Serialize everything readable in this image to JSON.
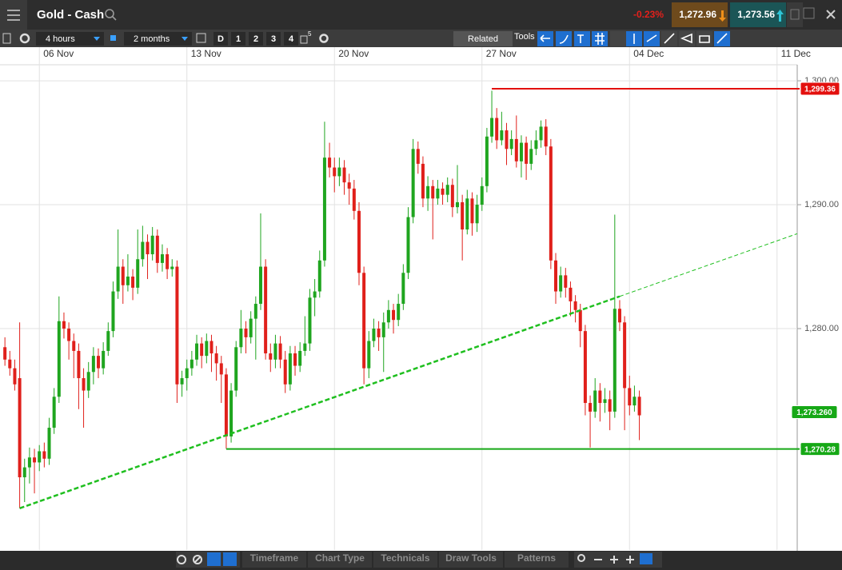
{
  "header": {
    "title": "Gold - Cash",
    "change": "-0.23%",
    "sell": "1,272.96",
    "buy": "1,273.56"
  },
  "toolbar": {
    "interval": "4 hours",
    "range": "2 months",
    "buttons": [
      "D",
      "1",
      "2",
      "3",
      "4"
    ],
    "layout_badge": "5",
    "related": "Related",
    "tools": "Tools"
  },
  "chart_data": {
    "type": "candlestick",
    "up_color": "#1fa51f",
    "down_color": "#e0201b",
    "ohlc": [
      [
        1278.5,
        1279.3,
        1277.0,
        1277.5
      ],
      [
        1277.5,
        1278.2,
        1276.2,
        1276.8
      ],
      [
        1276.8,
        1277.5,
        1275.0,
        1275.5
      ],
      [
        1276.0,
        1280.5,
        1265.5,
        1268.0
      ],
      [
        1268.0,
        1269.5,
        1266.0,
        1268.8
      ],
      [
        1268.8,
        1270.4,
        1267.5,
        1269.6
      ],
      [
        1269.6,
        1270.3,
        1266.7,
        1269.2
      ],
      [
        1269.2,
        1270.6,
        1268.5,
        1270.1
      ],
      [
        1270.1,
        1270.8,
        1268.8,
        1269.5
      ],
      [
        1269.5,
        1272.8,
        1269.0,
        1272.0
      ],
      [
        1272.0,
        1275.2,
        1271.5,
        1274.5
      ],
      [
        1274.5,
        1282.6,
        1274.0,
        1280.6
      ],
      [
        1280.6,
        1281.3,
        1279.2,
        1280.0
      ],
      [
        1280.0,
        1280.5,
        1277.5,
        1279.0
      ],
      [
        1279.0,
        1279.6,
        1276.0,
        1278.2
      ],
      [
        1278.2,
        1278.8,
        1273.5,
        1276.0
      ],
      [
        1276.0,
        1276.8,
        1272.0,
        1275.0
      ],
      [
        1275.0,
        1277.3,
        1274.4,
        1276.5
      ],
      [
        1276.5,
        1278.5,
        1275.5,
        1277.8
      ],
      [
        1277.8,
        1278.4,
        1276.0,
        1276.8
      ],
      [
        1276.8,
        1278.9,
        1276.3,
        1278.2
      ],
      [
        1278.2,
        1280.5,
        1277.8,
        1279.8
      ],
      [
        1279.8,
        1283.8,
        1279.3,
        1283.0
      ],
      [
        1283.0,
        1288.0,
        1282.4,
        1285.0
      ],
      [
        1285.0,
        1285.6,
        1282.0,
        1283.5
      ],
      [
        1283.5,
        1286.0,
        1283.0,
        1284.2
      ],
      [
        1284.2,
        1284.8,
        1282.3,
        1283.3
      ],
      [
        1283.3,
        1288.0,
        1282.8,
        1285.6
      ],
      [
        1285.6,
        1288.3,
        1285.0,
        1287.0
      ],
      [
        1287.0,
        1287.6,
        1284.0,
        1286.0
      ],
      [
        1286.0,
        1288.2,
        1285.5,
        1287.5
      ],
      [
        1287.5,
        1288.0,
        1284.5,
        1285.3
      ],
      [
        1285.3,
        1286.8,
        1284.6,
        1286.0
      ],
      [
        1286.0,
        1286.5,
        1284.0,
        1284.8
      ],
      [
        1284.8,
        1285.6,
        1284.2,
        1285.0
      ],
      [
        1285.0,
        1285.5,
        1274.0,
        1275.5
      ],
      [
        1275.5,
        1276.6,
        1274.5,
        1276.0
      ],
      [
        1276.0,
        1277.5,
        1275.0,
        1276.8
      ],
      [
        1276.8,
        1278.2,
        1276.2,
        1277.5
      ],
      [
        1277.5,
        1279.5,
        1277.0,
        1278.8
      ],
      [
        1278.8,
        1279.3,
        1276.8,
        1277.8
      ],
      [
        1277.8,
        1279.6,
        1277.2,
        1279.0
      ],
      [
        1279.0,
        1279.5,
        1276.5,
        1278.0
      ],
      [
        1278.0,
        1278.6,
        1275.8,
        1277.2
      ],
      [
        1277.2,
        1277.8,
        1274.0,
        1276.3
      ],
      [
        1276.3,
        1276.8,
        1270.3,
        1271.3
      ],
      [
        1271.3,
        1275.6,
        1270.8,
        1275.0
      ],
      [
        1275.0,
        1279.0,
        1274.5,
        1278.5
      ],
      [
        1278.5,
        1281.5,
        1278.0,
        1280.0
      ],
      [
        1280.0,
        1280.6,
        1278.0,
        1279.3
      ],
      [
        1279.3,
        1281.4,
        1278.8,
        1280.8
      ],
      [
        1280.8,
        1282.6,
        1277.5,
        1282.0
      ],
      [
        1282.0,
        1289.3,
        1281.5,
        1285.0
      ],
      [
        1285.0,
        1285.6,
        1277.5,
        1278.0
      ],
      [
        1278.0,
        1278.8,
        1276.5,
        1277.5
      ],
      [
        1277.5,
        1279.5,
        1276.8,
        1278.8
      ],
      [
        1278.8,
        1279.4,
        1276.8,
        1277.5
      ],
      [
        1277.5,
        1278.2,
        1274.8,
        1275.5
      ],
      [
        1275.5,
        1278.6,
        1275.0,
        1278.0
      ],
      [
        1278.0,
        1278.6,
        1276.2,
        1277.0
      ],
      [
        1277.0,
        1278.9,
        1276.5,
        1278.2
      ],
      [
        1278.2,
        1281.0,
        1277.8,
        1278.8
      ],
      [
        1278.8,
        1283.2,
        1278.2,
        1282.5
      ],
      [
        1282.5,
        1284.0,
        1281.0,
        1283.0
      ],
      [
        1283.0,
        1286.3,
        1282.5,
        1285.5
      ],
      [
        1285.5,
        1296.7,
        1285.0,
        1293.8
      ],
      [
        1293.8,
        1295.0,
        1292.2,
        1293.0
      ],
      [
        1293.0,
        1293.8,
        1291.0,
        1292.3
      ],
      [
        1292.3,
        1293.8,
        1291.5,
        1293.0
      ],
      [
        1293.0,
        1293.6,
        1290.8,
        1291.8
      ],
      [
        1291.8,
        1292.5,
        1290.0,
        1291.3
      ],
      [
        1291.3,
        1292.0,
        1288.8,
        1289.5
      ],
      [
        1289.5,
        1290.2,
        1283.5,
        1284.5
      ],
      [
        1284.5,
        1285.0,
        1275.5,
        1276.8
      ],
      [
        1276.8,
        1279.8,
        1276.0,
        1279.0
      ],
      [
        1279.0,
        1280.8,
        1278.5,
        1280.0
      ],
      [
        1280.0,
        1280.6,
        1278.2,
        1279.3
      ],
      [
        1279.3,
        1281.3,
        1276.5,
        1280.5
      ],
      [
        1280.5,
        1282.3,
        1280.0,
        1281.5
      ],
      [
        1281.5,
        1282.0,
        1279.6,
        1280.7
      ],
      [
        1280.7,
        1282.8,
        1280.2,
        1282.0
      ],
      [
        1282.0,
        1285.2,
        1281.5,
        1284.5
      ],
      [
        1284.5,
        1289.8,
        1284.0,
        1289.0
      ],
      [
        1289.0,
        1295.3,
        1288.5,
        1294.5
      ],
      [
        1294.5,
        1295.1,
        1292.5,
        1293.3
      ],
      [
        1293.3,
        1293.9,
        1289.8,
        1290.5
      ],
      [
        1290.5,
        1292.3,
        1289.5,
        1291.5
      ],
      [
        1291.5,
        1292.0,
        1287.2,
        1290.5
      ],
      [
        1290.5,
        1292.0,
        1290.0,
        1291.3
      ],
      [
        1291.3,
        1291.8,
        1290.0,
        1290.8
      ],
      [
        1290.8,
        1292.2,
        1290.2,
        1291.6
      ],
      [
        1291.6,
        1292.1,
        1289.0,
        1289.8
      ],
      [
        1289.8,
        1293.2,
        1289.3,
        1290.2
      ],
      [
        1290.2,
        1290.8,
        1285.5,
        1288.0
      ],
      [
        1288.0,
        1291.2,
        1287.6,
        1290.5
      ],
      [
        1290.5,
        1291.0,
        1287.5,
        1288.5
      ],
      [
        1288.5,
        1290.8,
        1287.8,
        1290.0
      ],
      [
        1290.0,
        1292.2,
        1289.5,
        1291.5
      ],
      [
        1291.5,
        1296.2,
        1291.0,
        1295.5
      ],
      [
        1295.5,
        1299.2,
        1295.0,
        1297.0
      ],
      [
        1297.0,
        1297.8,
        1294.5,
        1295.2
      ],
      [
        1295.2,
        1297.5,
        1294.8,
        1296.0
      ],
      [
        1296.0,
        1296.6,
        1293.2,
        1294.5
      ],
      [
        1294.5,
        1296.0,
        1294.0,
        1295.3
      ],
      [
        1295.3,
        1297.2,
        1293.0,
        1293.5
      ],
      [
        1293.5,
        1295.6,
        1292.2,
        1295.0
      ],
      [
        1295.0,
        1295.5,
        1292.0,
        1293.3
      ],
      [
        1293.3,
        1295.2,
        1292.8,
        1294.5
      ],
      [
        1294.5,
        1296.0,
        1294.0,
        1295.2
      ],
      [
        1295.2,
        1296.8,
        1294.6,
        1296.3
      ],
      [
        1296.3,
        1296.9,
        1294.0,
        1294.7
      ],
      [
        1294.7,
        1295.3,
        1284.8,
        1285.5
      ],
      [
        1285.5,
        1286.1,
        1282.0,
        1283.0
      ],
      [
        1283.0,
        1285.0,
        1282.5,
        1284.3
      ],
      [
        1284.3,
        1284.9,
        1282.5,
        1283.3
      ],
      [
        1283.3,
        1283.8,
        1281.0,
        1282.2
      ],
      [
        1282.2,
        1282.7,
        1280.5,
        1281.5
      ],
      [
        1281.5,
        1282.0,
        1278.5,
        1279.8
      ],
      [
        1279.8,
        1280.3,
        1273.0,
        1274.0
      ],
      [
        1274.0,
        1274.6,
        1270.4,
        1273.3
      ],
      [
        1273.3,
        1276.0,
        1272.8,
        1275.0
      ],
      [
        1275.0,
        1275.6,
        1272.5,
        1274.0
      ],
      [
        1274.0,
        1275.2,
        1273.2,
        1274.3
      ],
      [
        1274.3,
        1275.0,
        1271.8,
        1273.3
      ],
      [
        1273.3,
        1289.2,
        1272.8,
        1281.6
      ],
      [
        1281.6,
        1282.3,
        1279.8,
        1280.5
      ],
      [
        1280.5,
        1281.0,
        1271.8,
        1275.2
      ],
      [
        1275.2,
        1276.2,
        1273.0,
        1273.8
      ],
      [
        1273.8,
        1275.4,
        1273.3,
        1274.5
      ],
      [
        1274.5,
        1275.0,
        1271.0,
        1273.0
      ]
    ],
    "xlim": [
      -1,
      161.1
    ],
    "xticks": [
      {
        "value": 7,
        "label": "06 Nov"
      },
      {
        "value": 37,
        "label": "13 Nov"
      },
      {
        "value": 67,
        "label": "20 Nov"
      },
      {
        "value": 97,
        "label": "27 Nov"
      },
      {
        "value": 127,
        "label": "04 Dec"
      },
      {
        "value": 157,
        "label": "11 Dec"
      }
    ],
    "ylim": [
      1262.13,
      1301.23
    ],
    "yticks": [
      {
        "value": 1300,
        "label": "1,300.00"
      },
      {
        "value": 1290,
        "label": "1,290.00"
      },
      {
        "value": 1280,
        "label": "1,280.00"
      }
    ],
    "grid": true,
    "trendline": {
      "start": [
        3,
        1265.5
      ],
      "end": [
        125,
        1282.6
      ],
      "color": "#1fbf1f"
    },
    "hlines": [
      {
        "value": 1299.36,
        "label": "1,299.36",
        "from": 99,
        "color": "#e3100e"
      },
      {
        "value": 1270.28,
        "label": "1,270.28",
        "from": 45,
        "color": "#16a816"
      }
    ],
    "last_price": {
      "value": 1273.26,
      "label": "1,273.260",
      "color": "#16a816"
    }
  },
  "bottom_bar": {
    "tabs": [
      "Timeframe",
      "Chart Type",
      "Technicals",
      "Draw Tools",
      "Patterns"
    ]
  }
}
